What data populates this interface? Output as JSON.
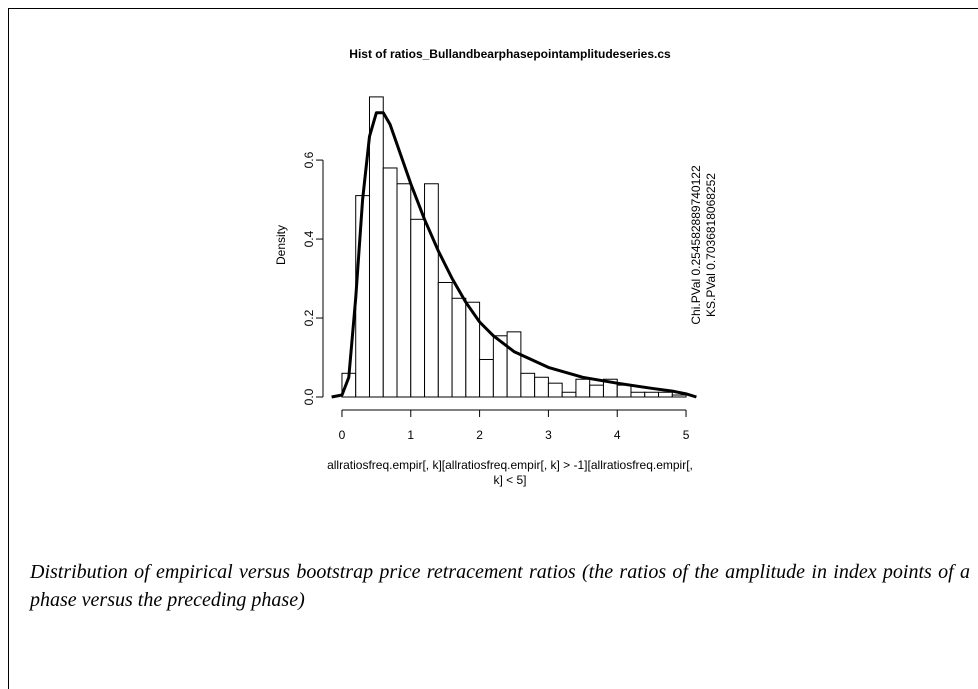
{
  "chart_data": {
    "type": "histogram",
    "title": "Hist of  ratios_Bullandbearphasepointamplitudeseries.cs",
    "x_label": [
      "allratiosfreq.empir[, k][allratiosfreq.empir[, k] > -1][allratiosfreq.empir[,",
      "k] < 5]"
    ],
    "y_label": "Density",
    "annotations": [
      "Chi.PVal 0.254582889740122",
      "KS.PVal 0.7036818068252"
    ],
    "bins": [
      0,
      0.2,
      0.4,
      0.6,
      0.8,
      1.0,
      1.2,
      1.4,
      1.6,
      1.8,
      2.0,
      2.2,
      2.4,
      2.6,
      2.8,
      3.0,
      3.2,
      3.4,
      3.6,
      3.8,
      4.0,
      4.2,
      4.4,
      4.6,
      4.8,
      5.0
    ],
    "values": [
      0.06,
      0.51,
      0.76,
      0.58,
      0.54,
      0.45,
      0.54,
      0.29,
      0.25,
      0.24,
      0.095,
      0.155,
      0.165,
      0.06,
      0.05,
      0.035,
      0.012,
      0.045,
      0.03,
      0.045,
      0.03,
      0.012,
      0.012,
      0.012,
      0.005
    ],
    "color": "#ffffff",
    "density_curve": {
      "x": [
        -0.15,
        0,
        0.1,
        0.2,
        0.3,
        0.4,
        0.5,
        0.6,
        0.7,
        0.8,
        1.0,
        1.2,
        1.4,
        1.6,
        1.8,
        2.0,
        2.2,
        2.5,
        3.0,
        3.5,
        4.0,
        4.5,
        4.8,
        5.0,
        5.15
      ],
      "y": [
        0,
        0.005,
        0.05,
        0.25,
        0.5,
        0.66,
        0.72,
        0.72,
        0.69,
        0.64,
        0.54,
        0.45,
        0.37,
        0.3,
        0.24,
        0.19,
        0.155,
        0.115,
        0.075,
        0.05,
        0.035,
        0.022,
        0.015,
        0.008,
        0
      ],
      "color": "#000000"
    },
    "xlim": [
      -0.2,
      5.2
    ],
    "ylim": [
      0,
      0.78
    ],
    "xticks": [
      0,
      1,
      2,
      3,
      4,
      5
    ],
    "yticks": [
      {
        "value": 0,
        "label": "0.0"
      },
      0.2,
      0.4,
      0.6
    ],
    "grid": false
  },
  "caption": "Distribution of empirical versus bootstrap price retracement ratios (the ratios of the amplitude in index points of a phase versus the preceding phase)"
}
